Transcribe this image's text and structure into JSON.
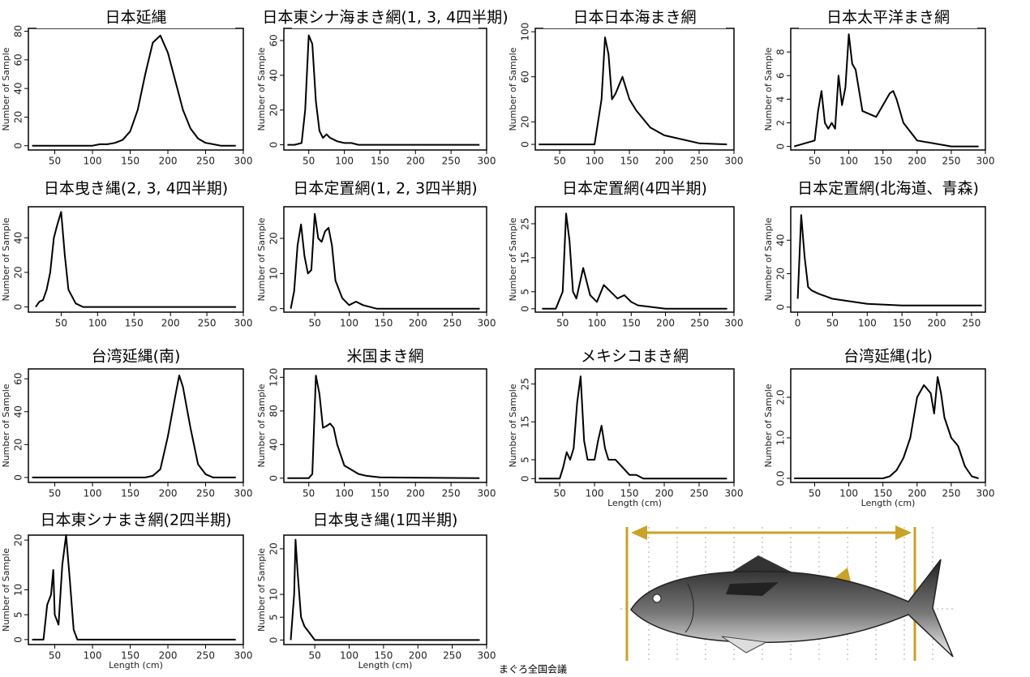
{
  "chart_data": [
    {
      "type": "line",
      "title": "日本延縄",
      "ylabel": "Number of Sample",
      "color": "#000000",
      "x": [
        20,
        30,
        40,
        50,
        60,
        70,
        80,
        90,
        100,
        110,
        120,
        130,
        140,
        150,
        160,
        170,
        180,
        190,
        200,
        210,
        220,
        230,
        240,
        250,
        260,
        270,
        280,
        290
      ],
      "values": [
        0,
        0,
        0,
        0,
        0,
        0,
        0,
        0,
        0,
        1,
        1,
        2,
        4,
        10,
        25,
        50,
        72,
        77,
        65,
        45,
        25,
        12,
        5,
        2,
        1,
        0,
        0,
        0
      ],
      "xlim": [
        15,
        300
      ],
      "xticks": [
        50,
        100,
        150,
        200,
        250,
        300
      ],
      "ylim": [
        -3,
        82
      ],
      "yticks": [
        0,
        20,
        40,
        60,
        80
      ]
    },
    {
      "type": "line",
      "title": "日本東シナ海まき網(1, 3, 4四半期)",
      "ylabel": "Number of Sample",
      "color": "#000000",
      "x": [
        20,
        30,
        40,
        45,
        50,
        55,
        60,
        65,
        70,
        75,
        80,
        90,
        100,
        110,
        120,
        150,
        200,
        250,
        290
      ],
      "values": [
        0,
        0,
        1,
        20,
        63,
        58,
        25,
        8,
        4,
        6,
        4,
        2,
        1,
        1,
        0,
        0,
        0,
        0,
        0
      ],
      "xlim": [
        15,
        300
      ],
      "xticks": [
        50,
        100,
        150,
        200,
        250,
        300
      ],
      "ylim": [
        -3,
        67
      ],
      "yticks": [
        0,
        20,
        40,
        60
      ]
    },
    {
      "type": "line",
      "title": "日本日本海まき網",
      "ylabel": "Number of Sample",
      "color": "#000000",
      "x": [
        20,
        100,
        110,
        115,
        120,
        125,
        130,
        140,
        150,
        160,
        180,
        200,
        250,
        290
      ],
      "values": [
        0,
        0,
        40,
        95,
        80,
        40,
        45,
        60,
        40,
        30,
        15,
        8,
        1,
        0
      ],
      "xlim": [
        15,
        300
      ],
      "xticks": [
        50,
        100,
        150,
        200,
        250,
        300
      ],
      "ylim": [
        -5,
        103
      ],
      "yticks": [
        0,
        20,
        60,
        100
      ]
    },
    {
      "type": "line",
      "title": "日本太平洋まき網",
      "ylabel": "Number of Sample",
      "color": "#000000",
      "x": [
        20,
        50,
        55,
        60,
        65,
        70,
        75,
        80,
        85,
        90,
        95,
        100,
        105,
        110,
        120,
        140,
        160,
        165,
        170,
        180,
        200,
        250,
        290
      ],
      "values": [
        0,
        0.5,
        3,
        4.7,
        2,
        1.5,
        2,
        1.5,
        6,
        3.5,
        5,
        9.5,
        7,
        6.5,
        3,
        2.5,
        4.5,
        4.7,
        4,
        2,
        0.5,
        0,
        0
      ],
      "xlim": [
        15,
        300
      ],
      "xticks": [
        50,
        100,
        150,
        200,
        250,
        300
      ],
      "ylim": [
        -0.3,
        10
      ],
      "yticks": [
        0,
        2,
        4,
        6,
        8
      ]
    },
    {
      "type": "line",
      "title": "日本曳き縄(2, 3, 4四半期)",
      "ylabel": "Number of Sample",
      "color": "#000000",
      "x": [
        15,
        20,
        25,
        30,
        35,
        40,
        45,
        50,
        55,
        60,
        70,
        80,
        100,
        290
      ],
      "values": [
        0,
        3,
        4,
        10,
        20,
        40,
        48,
        55,
        30,
        10,
        2,
        0,
        0,
        0
      ],
      "xlim": [
        5,
        300
      ],
      "xticks": [
        50,
        100,
        150,
        200,
        250,
        300
      ],
      "ylim": [
        -3,
        58
      ],
      "yticks": [
        0,
        20,
        40
      ]
    },
    {
      "type": "line",
      "title": "日本定置網(1, 2, 3四半期)",
      "ylabel": "Number of Sample",
      "color": "#000000",
      "x": [
        15,
        20,
        25,
        30,
        35,
        40,
        45,
        50,
        55,
        60,
        65,
        70,
        75,
        80,
        90,
        100,
        110,
        120,
        140,
        290
      ],
      "values": [
        0,
        5,
        18,
        24,
        15,
        10,
        11,
        27,
        20,
        19,
        22,
        23,
        18,
        8,
        3,
        1,
        2,
        1,
        0,
        0
      ],
      "xlim": [
        5,
        300
      ],
      "xticks": [
        50,
        100,
        150,
        200,
        250,
        300
      ],
      "ylim": [
        -1,
        29
      ],
      "yticks": [
        0,
        10,
        20
      ]
    },
    {
      "type": "line",
      "title": "日本定置網(4四半期)",
      "ylabel": "Number of Sample",
      "color": "#000000",
      "x": [
        20,
        40,
        50,
        55,
        60,
        65,
        70,
        80,
        90,
        100,
        110,
        120,
        130,
        140,
        150,
        160,
        200,
        290
      ],
      "values": [
        0,
        0,
        5,
        28,
        20,
        5,
        3,
        12,
        4,
        2,
        7,
        5,
        3,
        4,
        2,
        1,
        0,
        0
      ],
      "xlim": [
        10,
        300
      ],
      "xticks": [
        50,
        100,
        150,
        200,
        250,
        300
      ],
      "ylim": [
        -1,
        30
      ],
      "yticks": [
        0,
        5,
        15,
        25
      ]
    },
    {
      "type": "line",
      "title": "日本定置網(北海道、青森)",
      "ylabel": "Number of Sample",
      "color": "#000000",
      "x": [
        0,
        5,
        10,
        15,
        20,
        30,
        50,
        100,
        150,
        200,
        250,
        265
      ],
      "values": [
        5,
        55,
        30,
        12,
        10,
        8,
        5,
        2,
        1,
        1,
        1,
        1
      ],
      "xlim": [
        -10,
        270
      ],
      "xticks": [
        0,
        50,
        100,
        150,
        200,
        250
      ],
      "ylim": [
        -3,
        60
      ],
      "yticks": [
        0,
        20,
        40
      ]
    },
    {
      "type": "line",
      "title": "台湾延縄(南)",
      "ylabel": "Number of Sample",
      "color": "#000000",
      "x": [
        20,
        150,
        170,
        180,
        190,
        200,
        210,
        215,
        220,
        230,
        240,
        250,
        260,
        290
      ],
      "values": [
        0,
        0,
        0,
        1,
        5,
        25,
        50,
        62,
        55,
        30,
        8,
        2,
        0,
        0
      ],
      "xlim": [
        15,
        300
      ],
      "xticks": [
        50,
        100,
        150,
        200,
        250,
        300
      ],
      "ylim": [
        -3,
        66
      ],
      "yticks": [
        0,
        20,
        40,
        60
      ]
    },
    {
      "type": "line",
      "title": "米国まき網",
      "ylabel": "Number of Sample",
      "color": "#000000",
      "x": [
        20,
        50,
        55,
        60,
        65,
        70,
        75,
        80,
        85,
        90,
        100,
        110,
        120,
        130,
        150,
        290
      ],
      "values": [
        0,
        0,
        5,
        122,
        100,
        60,
        62,
        65,
        60,
        40,
        15,
        10,
        5,
        3,
        1,
        0
      ],
      "xlim": [
        15,
        300
      ],
      "xticks": [
        50,
        100,
        150,
        200,
        250,
        300
      ],
      "ylim": [
        -5,
        130
      ],
      "yticks": [
        0,
        40,
        80,
        120
      ]
    },
    {
      "type": "line",
      "title": "メキシコまき網",
      "ylabel": "Number of Sample",
      "xlabel": "Length (cm)",
      "color": "#000000",
      "x": [
        20,
        50,
        55,
        60,
        65,
        70,
        75,
        80,
        85,
        90,
        100,
        105,
        110,
        115,
        120,
        130,
        140,
        150,
        160,
        170,
        290
      ],
      "values": [
        0,
        0,
        3,
        7,
        5,
        8,
        20,
        27,
        10,
        5,
        5,
        10,
        14,
        8,
        5,
        5,
        3,
        1,
        1,
        0,
        0
      ],
      "xlim": [
        15,
        300
      ],
      "xticks": [
        50,
        100,
        150,
        200,
        250,
        300
      ],
      "ylim": [
        -1,
        29
      ],
      "yticks": [
        0,
        5,
        15,
        25
      ]
    },
    {
      "type": "line",
      "title": "台湾延縄(北)",
      "ylabel": "Number of Sample",
      "xlabel": "Length (cm)",
      "color": "#000000",
      "x": [
        20,
        140,
        150,
        160,
        170,
        180,
        190,
        200,
        210,
        220,
        225,
        230,
        235,
        240,
        250,
        260,
        270,
        280,
        290
      ],
      "values": [
        0,
        0,
        0,
        0.05,
        0.2,
        0.5,
        1,
        2,
        2.3,
        2.1,
        1.6,
        2.5,
        2.1,
        1.5,
        1,
        0.8,
        0.3,
        0.05,
        0
      ],
      "xlim": [
        15,
        300
      ],
      "xticks": [
        50,
        100,
        150,
        200,
        250,
        300
      ],
      "ylim": [
        -0.1,
        2.7
      ],
      "yticks": [
        {
          "value": 0,
          "label": "0.0"
        },
        {
          "value": 1,
          "label": "1.0"
        },
        {
          "value": 2,
          "label": "2.0"
        }
      ]
    },
    {
      "type": "line",
      "title": "日本東シナまき網(2四半期)",
      "ylabel": "Number of Sample",
      "xlabel": "Length (cm)",
      "color": "#000000",
      "x": [
        20,
        35,
        40,
        45,
        48,
        50,
        55,
        60,
        65,
        70,
        75,
        80,
        100,
        290
      ],
      "values": [
        0,
        0,
        7,
        9,
        14,
        5,
        3,
        15,
        21,
        12,
        2,
        0,
        0,
        0
      ],
      "xlim": [
        15,
        300
      ],
      "xticks": [
        50,
        100,
        150,
        200,
        250,
        300
      ],
      "ylim": [
        -1,
        21
      ],
      "yticks": [
        0,
        5,
        10,
        20
      ]
    },
    {
      "type": "line",
      "title": "日本曳き縄(1四半期)",
      "ylabel": "Number of Sample",
      "xlabel": "Length (cm)",
      "color": "#000000",
      "x": [
        15,
        20,
        22,
        25,
        30,
        35,
        40,
        50,
        100,
        290
      ],
      "values": [
        0,
        10,
        22,
        15,
        5,
        3,
        2,
        0,
        0,
        0
      ],
      "xlim": [
        5,
        300
      ],
      "xticks": [
        50,
        100,
        150,
        200,
        250,
        300
      ],
      "ylim": [
        -1,
        23
      ],
      "yticks": [
        0,
        5,
        10,
        20
      ]
    }
  ],
  "footer": "まぐろ全国会議"
}
